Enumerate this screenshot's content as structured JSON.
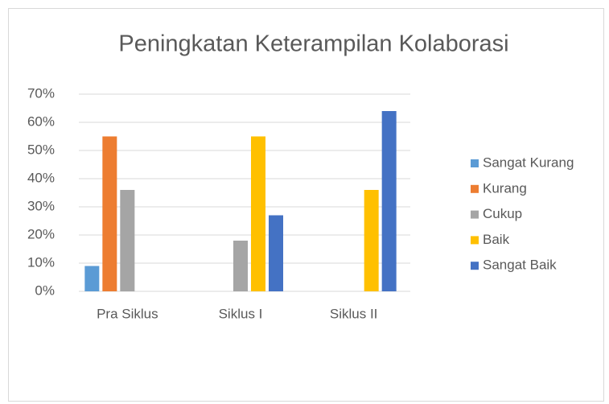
{
  "chart_data": {
    "type": "bar",
    "title": "Peningkatan Keterampilan Kolaborasi",
    "categories": [
      "Pra Siklus",
      "Siklus I",
      "Siklus II"
    ],
    "series": [
      {
        "name": "Sangat Kurang",
        "color": "#5b9bd5",
        "values": [
          9,
          0,
          0
        ]
      },
      {
        "name": "Kurang",
        "color": "#ed7d31",
        "values": [
          55,
          0,
          0
        ]
      },
      {
        "name": "Cukup",
        "color": "#a5a5a5",
        "values": [
          36,
          18,
          0
        ]
      },
      {
        "name": "Baik",
        "color": "#ffc000",
        "values": [
          0,
          55,
          36
        ]
      },
      {
        "name": "Sangat Baik",
        "color": "#4472c4",
        "values": [
          0,
          27,
          64
        ]
      }
    ],
    "ylim": [
      0,
      70
    ],
    "yticks": [
      {
        "value": 0,
        "label": "0%"
      },
      {
        "value": 10,
        "label": "10%"
      },
      {
        "value": 20,
        "label": "20%"
      },
      {
        "value": 30,
        "label": "30%"
      },
      {
        "value": 40,
        "label": "40%"
      },
      {
        "value": 50,
        "label": "50%"
      },
      {
        "value": 60,
        "label": "60%"
      },
      {
        "value": 70,
        "label": "70%"
      }
    ],
    "grid": true,
    "legend": "right"
  }
}
